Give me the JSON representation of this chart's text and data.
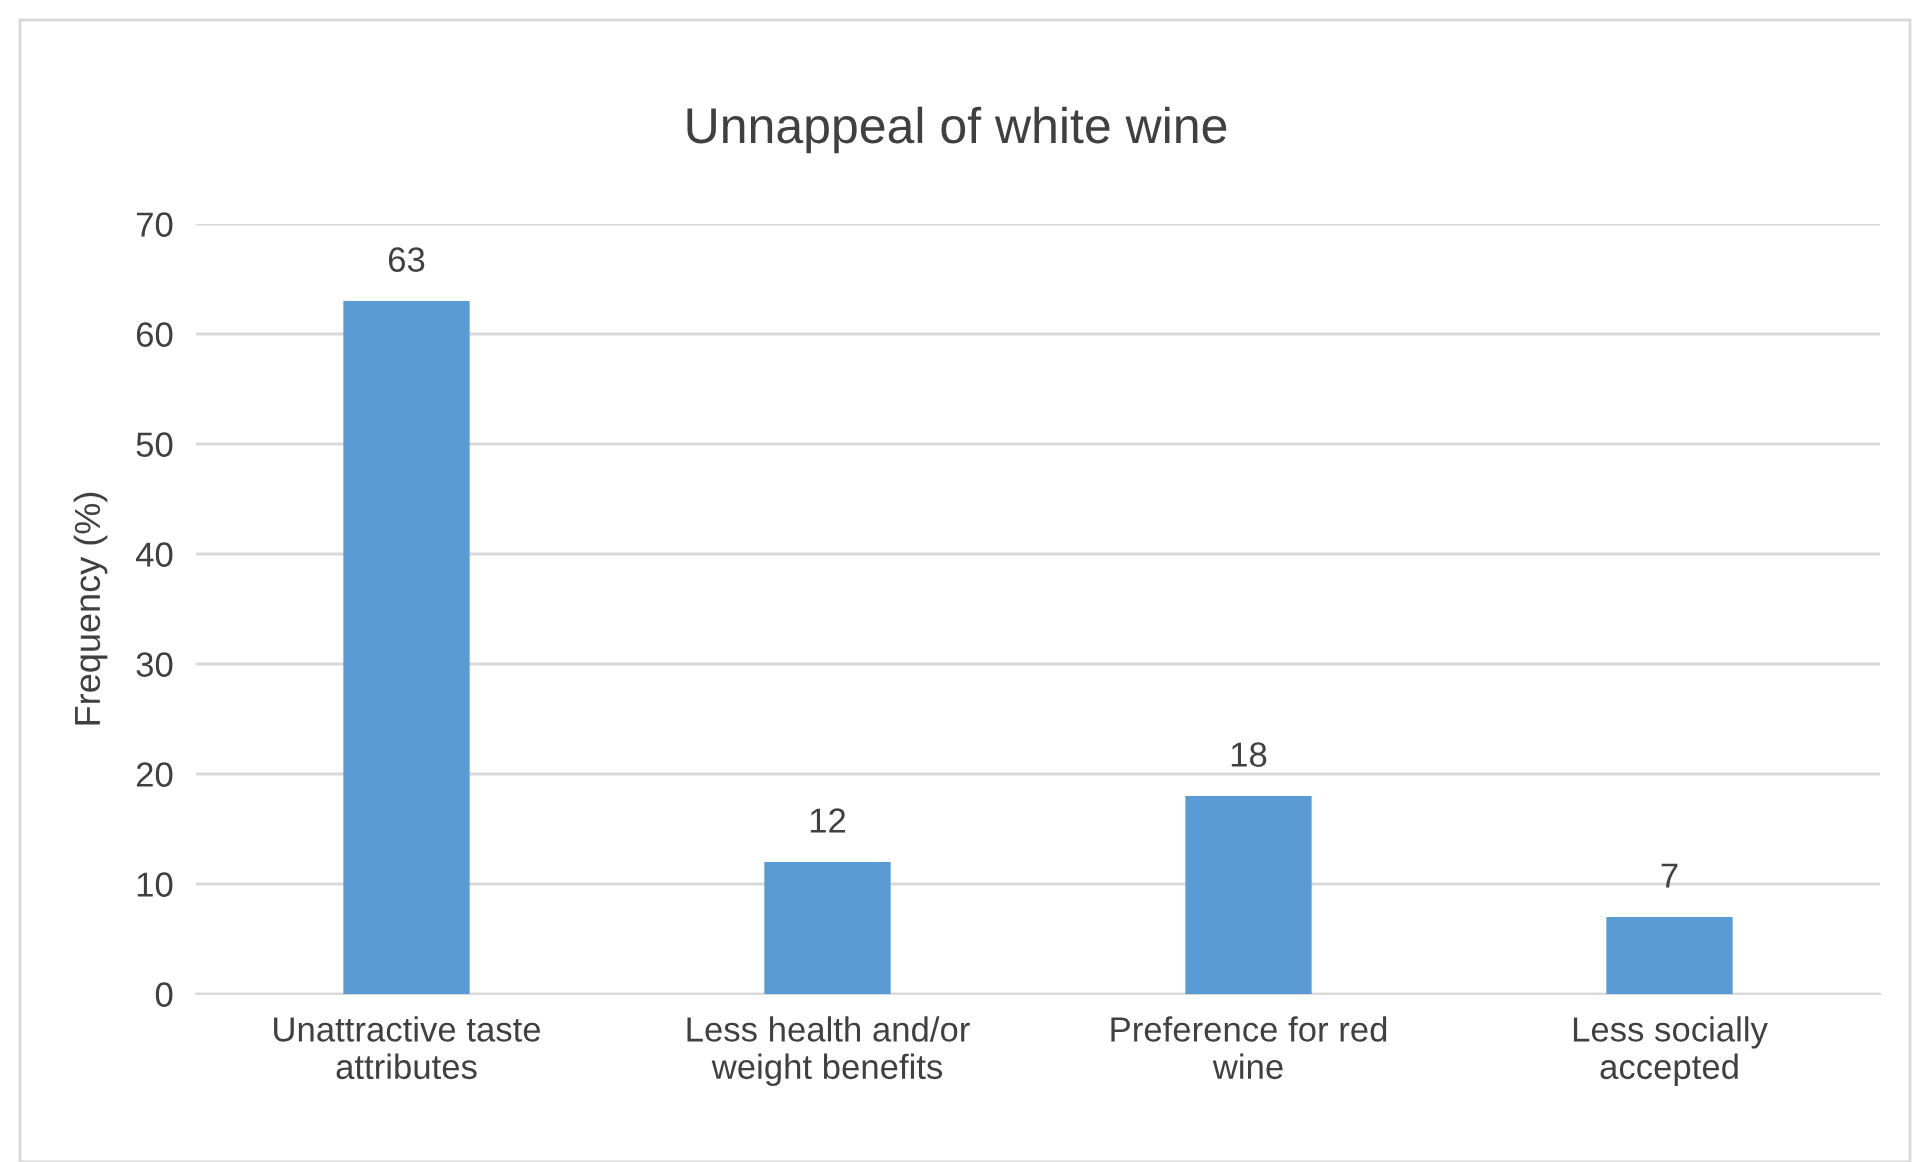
{
  "chart_data": {
    "type": "bar",
    "title": "Unnappeal of white wine",
    "ylabel": "Frequency (%)",
    "categories": [
      "Unattractive taste\nattributes",
      "Less health and/or\nweight benefits",
      "Preference for red\nwine",
      "Less socially\naccepted"
    ],
    "values": [
      63,
      12,
      18,
      7
    ],
    "color": "#5b9bd5",
    "ylim": [
      0,
      70
    ],
    "yticks": [
      0,
      10,
      20,
      30,
      40,
      50,
      60,
      70
    ],
    "grid": "y",
    "data_labels": true
  }
}
